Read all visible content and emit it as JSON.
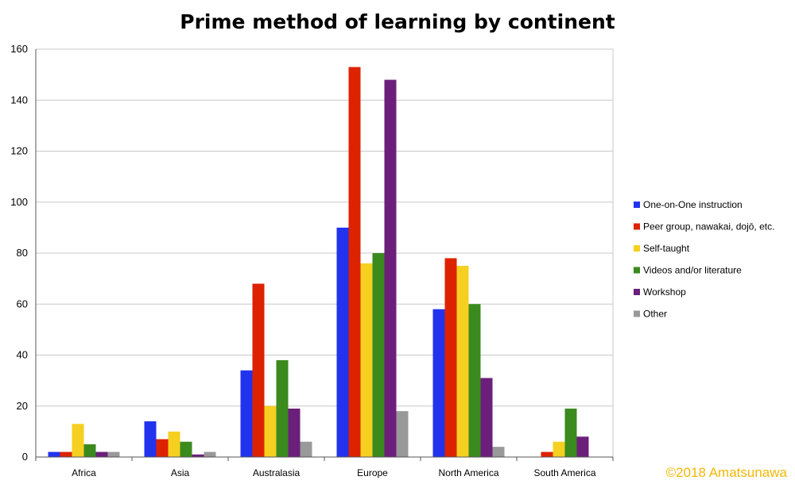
{
  "chart_data": {
    "type": "bar",
    "title": "Prime method of learning by continent",
    "xlabel": "",
    "ylabel": "",
    "ylim": [
      0,
      160
    ],
    "yticks": [
      0,
      20,
      40,
      60,
      80,
      100,
      120,
      140,
      160
    ],
    "grid": true,
    "legend_position": "right",
    "categories": [
      "Africa",
      "Asia",
      "Australasia",
      "Europe",
      "North America",
      "South America"
    ],
    "series": [
      {
        "name": "One-on-One instruction",
        "color": "#2233ee",
        "values": [
          2,
          14,
          34,
          90,
          58,
          0
        ]
      },
      {
        "name": "Peer group, nawakai, dojō, etc.",
        "color": "#dd2200",
        "values": [
          2,
          7,
          68,
          153,
          78,
          2
        ]
      },
      {
        "name": "Self-taught",
        "color": "#f5d020",
        "values": [
          13,
          10,
          20,
          76,
          75,
          6
        ]
      },
      {
        "name": "Videos and/or literature",
        "color": "#3a8a1e",
        "values": [
          5,
          6,
          38,
          80,
          60,
          19
        ]
      },
      {
        "name": "Workshop",
        "color": "#6b1f7a",
        "values": [
          2,
          1,
          19,
          148,
          31,
          8
        ]
      },
      {
        "name": "Other",
        "color": "#999999",
        "values": [
          2,
          2,
          6,
          18,
          4,
          0
        ]
      }
    ]
  },
  "copyright": "©2018 Amatsunawa"
}
